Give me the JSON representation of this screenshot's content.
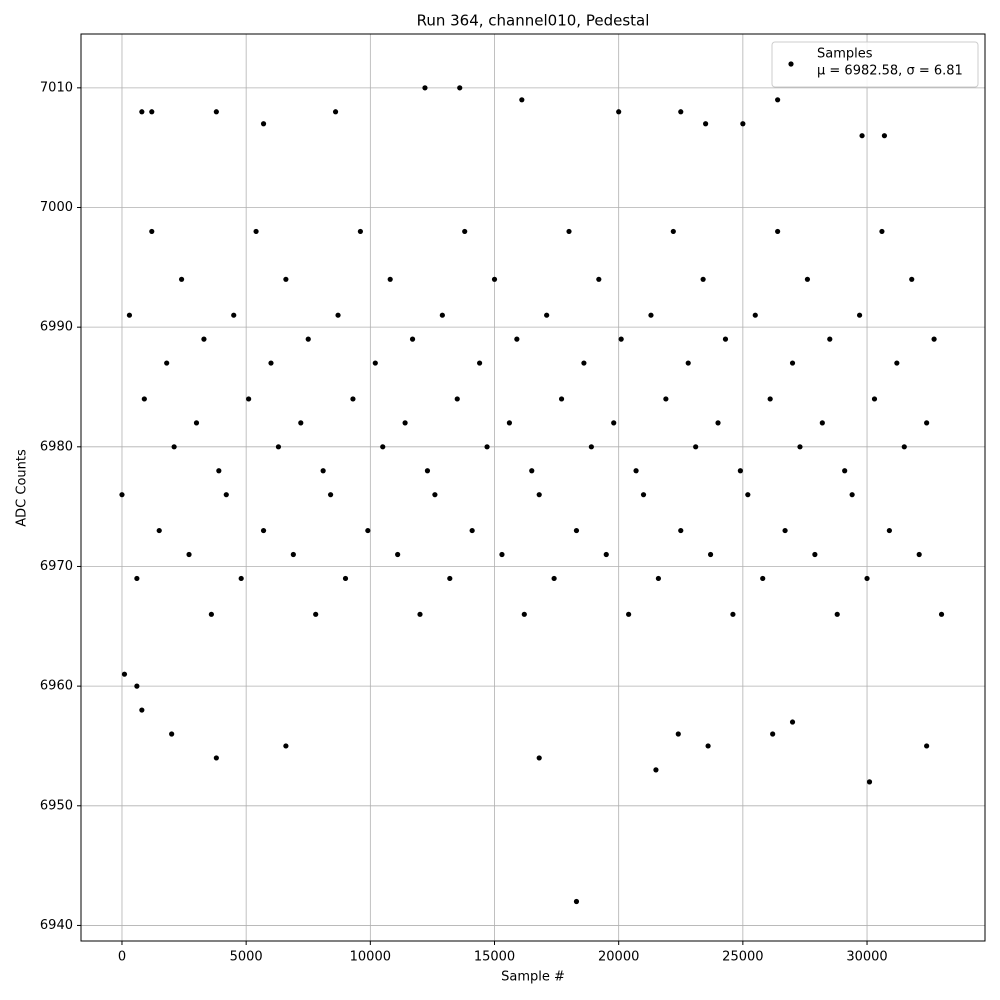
{
  "chart_data": {
    "type": "scatter",
    "title": "Run 364, channel010, Pedestal",
    "x_label": "Sample #",
    "y_label": "ADC Counts",
    "xlim": [
      -1650,
      34750
    ],
    "ylim": [
      6938.7,
      7014.5
    ],
    "xticks": [
      0,
      5000,
      10000,
      15000,
      20000,
      25000,
      30000
    ],
    "yticks": [
      6940,
      6950,
      6960,
      6970,
      6980,
      6990,
      7000,
      7010
    ],
    "grid": true,
    "legend": "upper right",
    "legend_note": "μ = 6982.58, σ = 6.81",
    "series": [
      {
        "name": "Samples",
        "color": "#000000",
        "x": [
          0,
          300,
          600,
          900,
          1200,
          1500,
          1800,
          2100,
          2400,
          2700,
          3000,
          3300,
          3600,
          3900,
          4200,
          4500,
          4800,
          5100,
          5400,
          5700,
          6000,
          6300,
          6600,
          6900,
          7200,
          7500,
          7800,
          8100,
          8400,
          8700,
          9000,
          9300,
          9600,
          9900,
          10200,
          10500,
          10800,
          11100,
          11400,
          11700,
          12000,
          12300,
          12600,
          12900,
          13200,
          13500,
          13800,
          14100,
          14400,
          14700,
          15000,
          15300,
          15600,
          15900,
          16200,
          16500,
          16800,
          17100,
          17400,
          17700,
          18000,
          18300,
          18600,
          18900,
          19200,
          19500,
          19800,
          20100,
          20400,
          20700,
          21000,
          21300,
          21600,
          21900,
          22200,
          22500,
          22800,
          23100,
          23400,
          23700,
          24000,
          24300,
          24600,
          24900,
          25200,
          25500,
          25800,
          26100,
          26400,
          26700,
          27000,
          27300,
          27600,
          27900,
          28200,
          28500,
          28800,
          29100,
          29400,
          29700,
          30000,
          30300,
          30600,
          30900,
          31200,
          31500,
          31800,
          32100,
          32400,
          32700,
          33000,
          100,
          600,
          800,
          2000,
          3800,
          6600,
          16800,
          18300,
          21500,
          30100,
          32400,
          22400,
          23600,
          26200,
          27000,
          12200,
          13600,
          16100,
          26400,
          800,
          3800,
          8600,
          20000,
          22500,
          30700,
          29800,
          5700,
          23500,
          25000,
          1200
        ],
        "y": [
          6976,
          6991,
          6969,
          6984,
          6998,
          6973,
          6987,
          6980,
          6994,
          6971,
          6982,
          6989,
          6966,
          6978,
          6976,
          6991,
          6969,
          6984,
          6998,
          6973,
          6987,
          6980,
          6994,
          6971,
          6982,
          6989,
          6966,
          6978,
          6976,
          6991,
          6969,
          6984,
          6998,
          6973,
          6987,
          6980,
          6994,
          6971,
          6982,
          6989,
          6966,
          6978,
          6976,
          6991,
          6969,
          6984,
          6998,
          6973,
          6987,
          6980,
          6994,
          6971,
          6982,
          6989,
          6966,
          6978,
          6976,
          6991,
          6969,
          6984,
          6998,
          6973,
          6987,
          6980,
          6994,
          6971,
          6982,
          6989,
          6966,
          6978,
          6976,
          6991,
          6969,
          6984,
          6998,
          6973,
          6987,
          6980,
          6994,
          6971,
          6982,
          6989,
          6966,
          6978,
          6976,
          6991,
          6969,
          6984,
          6998,
          6973,
          6987,
          6980,
          6994,
          6971,
          6982,
          6989,
          6966,
          6978,
          6976,
          6991,
          6969,
          6984,
          6998,
          6973,
          6987,
          6980,
          6994,
          6971,
          6982,
          6989,
          6966,
          6961,
          6960,
          6958,
          6956,
          6954,
          6955,
          6954,
          6942,
          6953,
          6952,
          6955,
          6956,
          6955,
          6956,
          6957,
          7010,
          7010,
          7009,
          7009,
          7008,
          7008,
          7008,
          7008,
          7008,
          7006,
          7006,
          7007,
          7007,
          7007,
          7008
        ]
      }
    ]
  }
}
